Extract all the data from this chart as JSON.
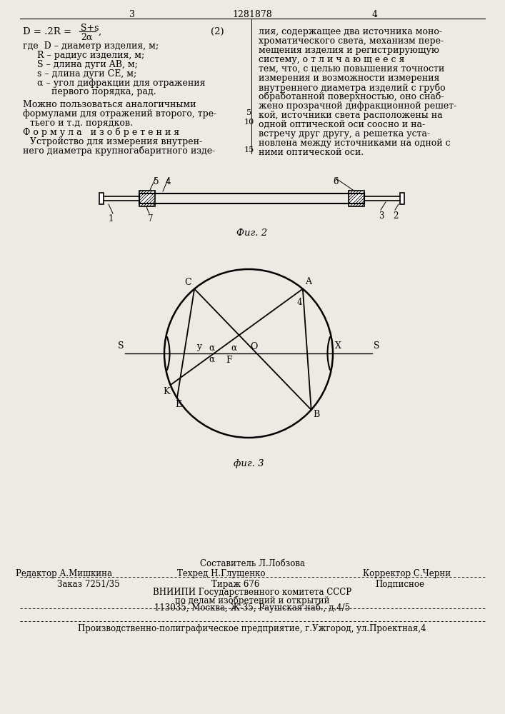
{
  "bg_color": "#ede9e3",
  "page_num_left": "3",
  "page_num_center": "1281878",
  "page_num_right": "4",
  "legend_lines": [
    "где  D – диаметр изделия, м;",
    "     R – радиус изделия, м;",
    "     S – длина дуги AB, м;",
    "     s – длина дуги CE, м;",
    "     α – угол дифракции для отражения",
    "          первого порядка, рад."
  ],
  "body_left_1": "Можно пользоваться аналогичными",
  "body_left_2": "формулами для отражений второго, тре-",
  "body_left_3": "тьего и т.д. порядков.",
  "formula_izob": "Ф о р м у л а   и з о б р е т е н и я",
  "body_left_5": "Устройство для измерения внутрен-",
  "body_left_6": "него диаметра крупногабаритного изде-",
  "body_right": [
    "лия, содержащее два источника моно-",
    "хроматического света, механизм пере-",
    "мещения изделия и регистрирующую",
    "систему, о т л и ч а ю щ е е с я",
    "тем, что, с целью повышения точности",
    "измерения и возможности измерения",
    "внутреннего диаметра изделий с грубо",
    "обработанной поверхностью, оно снаб-",
    "жено прозрачной дифракционной решет-",
    "кой, источники света расположены на",
    "одной оптической оси соосно и на-",
    "встречу друг другу, а решетка уста-",
    "новлена между источниками на одной с",
    "ними оптической оси."
  ],
  "fig2_caption": "Фиг. 2",
  "fig3_caption": "фиг. 3",
  "footer_line1_col1": "Редактор А.Мишкина",
  "footer_col2_top": "Составитель Л.Лобзова",
  "footer_col2_bot": "Техред Н.Глущенко",
  "footer_line1_col3": "Корректор С.Черни",
  "footer_order": "Заказ 7251/35",
  "footer_tirazh": "Тираж 676",
  "footer_podpisnoe": "Подписное",
  "footer_vnipi": "ВНИИПИ Государственного комитета СССР",
  "footer_dela": "по делам изобретений и открытий",
  "footer_addr": "113035, Москва, Ж-35, Раушская наб., д.4/5",
  "footer_poligraf": "Производственно-полиграфическое предприятие, г.Ужгород, ул.Проектная,4"
}
